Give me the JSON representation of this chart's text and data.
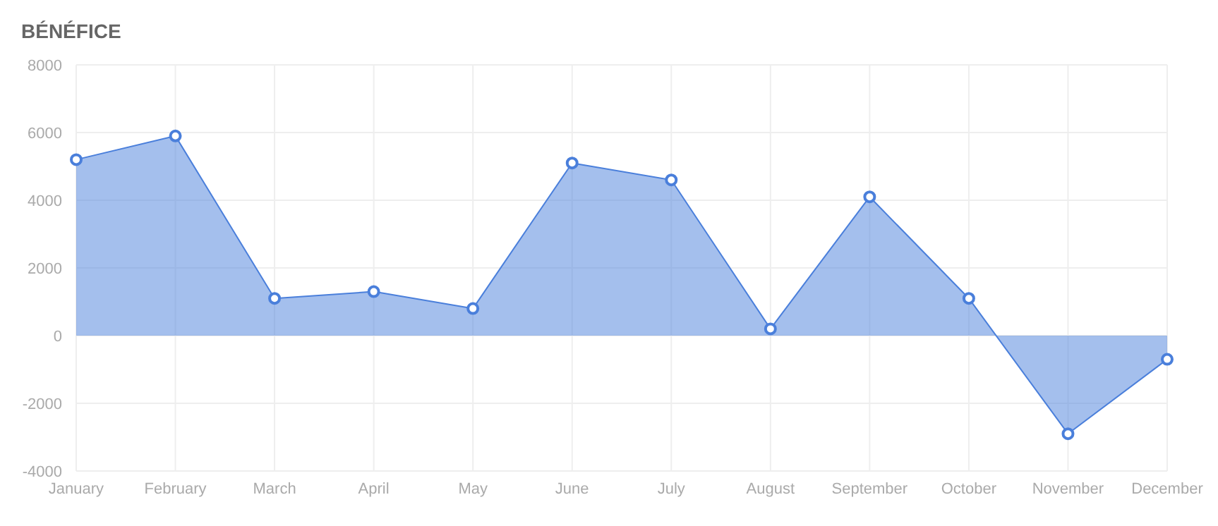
{
  "chart_data": {
    "type": "area",
    "title": "BÉNÉFICE",
    "categories": [
      "January",
      "February",
      "March",
      "April",
      "May",
      "June",
      "July",
      "August",
      "September",
      "October",
      "November",
      "December"
    ],
    "series": [
      {
        "color": "#4a7fdb",
        "values": [
          5200,
          5900,
          1100,
          1300,
          800,
          5100,
          4600,
          200,
          4100,
          1100,
          -2900,
          -700
        ]
      }
    ],
    "ylim": [
      -4000,
      8000
    ],
    "yticks": [
      -4000,
      -2000,
      0,
      2000,
      4000,
      6000,
      8000
    ],
    "grid": true,
    "marker": "circle"
  }
}
